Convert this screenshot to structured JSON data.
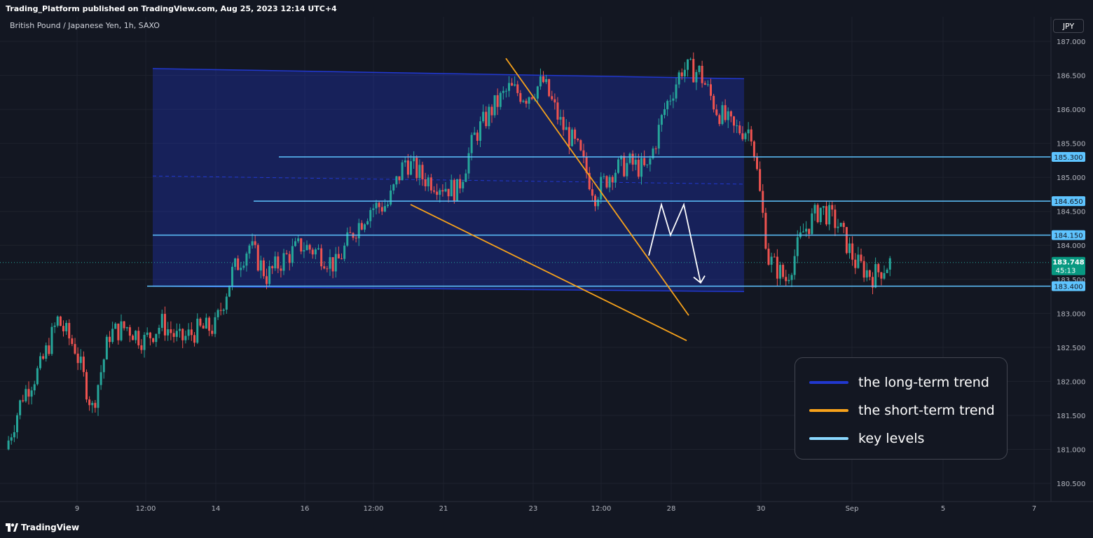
{
  "header": {
    "published": "Trading_Platform published on TradingView.com, Aug 25, 2023 12:14 UTC+4"
  },
  "symbol": {
    "title": "British Pound / Japanese Yen, 1h, SAXO",
    "currency": "JPY"
  },
  "footer": {
    "brand": "TradingView",
    "logo_icon": "tradingview-logo-icon"
  },
  "colors": {
    "background": "#131722",
    "grid": "#1e222d",
    "up": "#26a69a",
    "down": "#ef5350",
    "long_term": "#2138cf",
    "short_term": "#f7a21b",
    "key_level": "#5ec4ff",
    "projection": "#ffffff",
    "price_badge": "#089981"
  },
  "legend": {
    "items": [
      {
        "label": "the long-term trend",
        "color": "#2138cf"
      },
      {
        "label": "the short-term trend",
        "color": "#f7a21b"
      },
      {
        "label": "key levels",
        "color": "#8ad8ff"
      }
    ]
  },
  "chart_data": {
    "type": "candlestick",
    "ylim": [
      180.3,
      187.3
    ],
    "y_ticks": [
      "187.000",
      "186.500",
      "186.000",
      "185.500",
      "185.000",
      "184.500",
      "184.000",
      "183.500",
      "183.000",
      "182.500",
      "182.000",
      "181.500",
      "181.000",
      "180.500"
    ],
    "x_tick_labels": [
      "9",
      "12:00",
      "14",
      "16",
      "12:00",
      "21",
      "23",
      "12:00",
      "28",
      "30",
      "Sep",
      "5",
      "7"
    ],
    "current_price": {
      "value": "183.748",
      "countdown": "45:13"
    },
    "key_levels": [
      {
        "label": "185.300",
        "value": 185.3
      },
      {
        "label": "184.650",
        "value": 184.65
      },
      {
        "label": "184.150",
        "value": 184.15
      },
      {
        "label": "183.400",
        "value": 183.4
      }
    ],
    "price_path": [
      [
        "Aug 8 00:00",
        181.0
      ],
      [
        "Aug 8 06:00",
        181.8
      ],
      [
        "Aug 8 12:00",
        182.2
      ],
      [
        "Aug 8 18:00",
        182.9
      ],
      [
        "Aug 9 00:00",
        182.5
      ],
      [
        "Aug 9 06:00",
        181.6
      ],
      [
        "Aug 9 12:00",
        182.7
      ],
      [
        "Aug 9 18:00",
        182.8
      ],
      [
        "Aug 10 00:00",
        182.6
      ],
      [
        "Aug 10 06:00",
        182.85
      ],
      [
        "Aug 10 12:00",
        182.6
      ],
      [
        "Aug 10 18:00",
        182.75
      ],
      [
        "Aug 11 00:00",
        182.8
      ],
      [
        "Aug 11 06:00",
        183.6
      ],
      [
        "Aug 11 12:00",
        184.0
      ],
      [
        "Aug 11 18:00",
        183.55
      ],
      [
        "Aug 14 00:00",
        183.8
      ],
      [
        "Aug 14 06:00",
        184.0
      ],
      [
        "Aug 14 12:00",
        183.9
      ],
      [
        "Aug 14 18:00",
        183.7
      ],
      [
        "Aug 15 00:00",
        184.2
      ],
      [
        "Aug 15 06:00",
        184.55
      ],
      [
        "Aug 15 12:00",
        184.6
      ],
      [
        "Aug 15 18:00",
        185.25
      ],
      [
        "Aug 16 00:00",
        185.0
      ],
      [
        "Aug 16 06:00",
        184.9
      ],
      [
        "Aug 16 12:00",
        184.8
      ],
      [
        "Aug 16 18:00",
        185.6
      ],
      [
        "Aug 17 00:00",
        186.0
      ],
      [
        "Aug 17 06:00",
        186.3
      ],
      [
        "Aug 17 12:00",
        186.2
      ],
      [
        "Aug 17 18:00",
        186.4
      ],
      [
        "Aug 18 00:00",
        185.8
      ],
      [
        "Aug 18 06:00",
        185.4
      ],
      [
        "Aug 18 12:00",
        184.75
      ],
      [
        "Aug 18 18:00",
        185.1
      ],
      [
        "Aug 21 00:00",
        185.2
      ],
      [
        "Aug 21 06:00",
        185.1
      ],
      [
        "Aug 21 12:00",
        186.0
      ],
      [
        "Aug 21 18:00",
        186.6
      ],
      [
        "Aug 22 00:00",
        186.55
      ],
      [
        "Aug 22 06:00",
        186.0
      ],
      [
        "Aug 22 12:00",
        185.7
      ],
      [
        "Aug 22 18:00",
        185.7
      ],
      [
        "Aug 23 00:00",
        183.8
      ],
      [
        "Aug 23 06:00",
        183.5
      ],
      [
        "Aug 23 12:00",
        184.2
      ],
      [
        "Aug 23 18:00",
        184.55
      ],
      [
        "Aug 24 00:00",
        184.3
      ],
      [
        "Aug 24 06:00",
        183.75
      ],
      [
        "Aug 24 12:00",
        183.55
      ],
      [
        "Aug 24 18:00",
        183.748
      ]
    ],
    "long_term_channel": {
      "upper": [
        [
          "Aug 11 00:00",
          186.6
        ],
        [
          "Aug 30 00:00",
          186.45
        ]
      ],
      "lower": [
        [
          "Aug 11 00:00",
          183.4
        ],
        [
          "Aug 30 00:00",
          183.32
        ]
      ],
      "midline": [
        [
          "Aug 11 00:00",
          185.02
        ],
        [
          "Aug 30 00:00",
          184.9
        ]
      ]
    },
    "short_term_lines": [
      {
        "from": [
          "Aug 22 06:00",
          186.75
        ],
        "to": [
          "Aug 28 12:00",
          182.97
        ]
      },
      {
        "from": [
          "Aug 18 06:00",
          184.6
        ],
        "to": [
          "Aug 28 12:00",
          182.6
        ]
      }
    ],
    "projection": [
      [
        "Aug 24 18:00",
        183.85
      ],
      [
        "Aug 25 00:00",
        184.6
      ],
      [
        "Aug 25 06:00",
        184.15
      ],
      [
        "Aug 25 12:00",
        184.6
      ],
      [
        "Aug 26 00:00",
        183.45
      ]
    ]
  }
}
